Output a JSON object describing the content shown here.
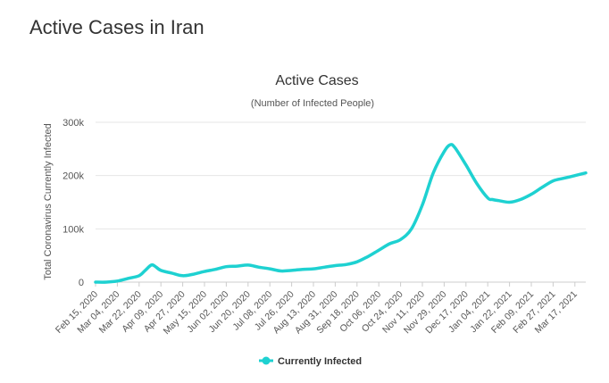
{
  "page": {
    "title": "Active Cases in Iran"
  },
  "chart_data": {
    "type": "line",
    "title": "Active Cases",
    "subtitle": "(Number of Infected People)",
    "xlabel": "",
    "ylabel": "Total Coronavirus Currently Infected",
    "ylim": [
      0,
      300000
    ],
    "yticks": [
      {
        "value": 0,
        "label": "0"
      },
      {
        "value": 100000,
        "label": "100k"
      },
      {
        "value": 200000,
        "label": "200k"
      },
      {
        "value": 300000,
        "label": "300k"
      }
    ],
    "xticks": [
      "Feb 15, 2020",
      "Mar 04, 2020",
      "Mar 22, 2020",
      "Apr 09, 2020",
      "Apr 27, 2020",
      "May 15, 2020",
      "Jun 02, 2020",
      "Jun 20, 2020",
      "Jul 08, 2020",
      "Jul 26, 2020",
      "Aug 13, 2020",
      "Aug 31, 2020",
      "Sep 18, 2020",
      "Oct 06, 2020",
      "Oct 24, 2020",
      "Nov 11, 2020",
      "Nov 29, 2020",
      "Dec 17, 2020",
      "Jan 04, 2021",
      "Jan 22, 2021",
      "Feb 09, 2021",
      "Feb 27, 2021",
      "Mar 17, 2021"
    ],
    "grid": true,
    "legend": "bottom-center",
    "series": [
      {
        "name": "Currently Infected",
        "color": "#1ed1d1",
        "x": [
          "Feb 15, 2020",
          "Feb 24, 2020",
          "Mar 04, 2020",
          "Mar 13, 2020",
          "Mar 22, 2020",
          "Mar 27, 2020",
          "Apr 01, 2020",
          "Apr 04, 2020",
          "Apr 09, 2020",
          "Apr 18, 2020",
          "Apr 27, 2020",
          "May 06, 2020",
          "May 15, 2020",
          "May 24, 2020",
          "Jun 02, 2020",
          "Jun 11, 2020",
          "Jun 20, 2020",
          "Jun 29, 2020",
          "Jul 08, 2020",
          "Jul 17, 2020",
          "Jul 26, 2020",
          "Aug 04, 2020",
          "Aug 13, 2020",
          "Aug 22, 2020",
          "Aug 31, 2020",
          "Sep 09, 2020",
          "Sep 18, 2020",
          "Sep 27, 2020",
          "Oct 06, 2020",
          "Oct 15, 2020",
          "Oct 24, 2020",
          "Nov 02, 2020",
          "Nov 11, 2020",
          "Nov 20, 2020",
          "Nov 29, 2020",
          "Dec 04, 2020",
          "Dec 08, 2020",
          "Dec 17, 2020",
          "Dec 26, 2020",
          "Jan 04, 2021",
          "Jan 08, 2021",
          "Jan 13, 2021",
          "Jan 22, 2021",
          "Jan 31, 2021",
          "Feb 09, 2021",
          "Feb 18, 2021",
          "Feb 27, 2021",
          "Mar 08, 2021",
          "Mar 17, 2021",
          "Mar 26, 2021"
        ],
        "values": [
          0,
          0,
          2000,
          7000,
          12000,
          22000,
          32000,
          30000,
          22000,
          17000,
          12000,
          15000,
          20000,
          24000,
          29000,
          30000,
          32000,
          28000,
          25000,
          21000,
          22000,
          24000,
          25000,
          28000,
          31000,
          33000,
          38000,
          48000,
          60000,
          72000,
          80000,
          100000,
          145000,
          205000,
          245000,
          258000,
          252000,
          220000,
          185000,
          158000,
          155000,
          153000,
          150000,
          155000,
          165000,
          178000,
          190000,
          195000,
          200000,
          205000
        ]
      }
    ]
  }
}
